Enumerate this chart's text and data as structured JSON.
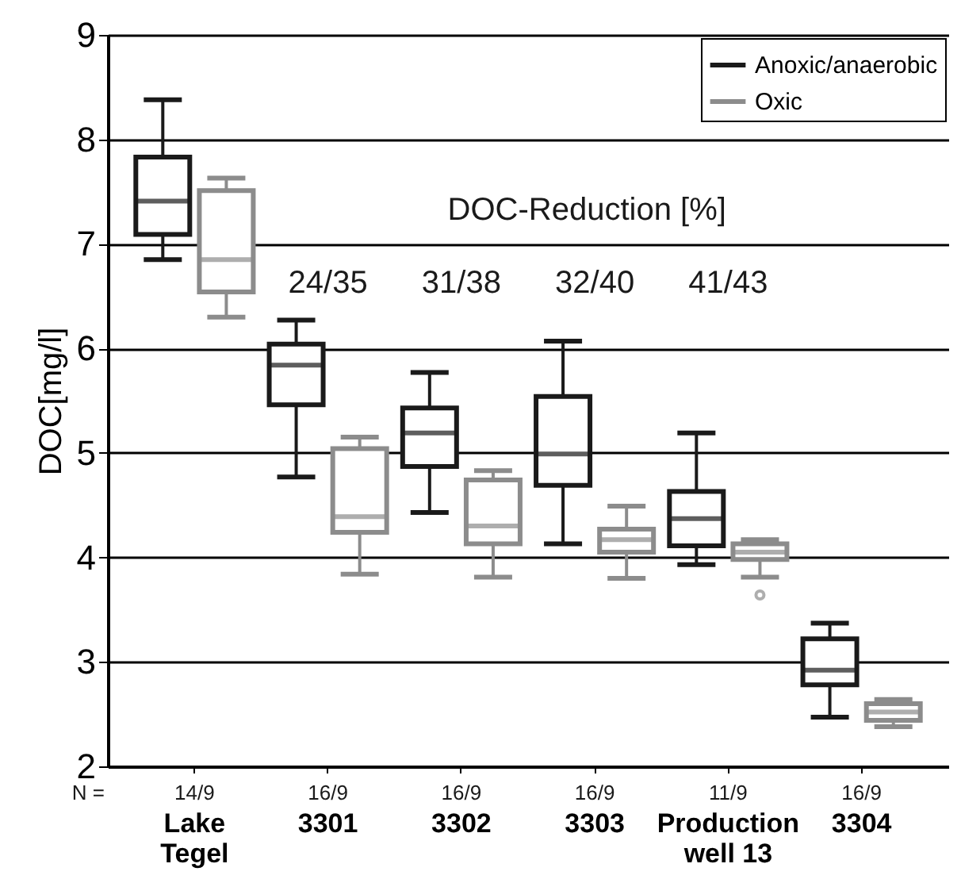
{
  "chart_data": {
    "type": "box",
    "ylabel": "DOC[mg/l]",
    "categories": [
      "Lake Tegel",
      "3301",
      "3302",
      "3303",
      "Production well 13",
      "3304"
    ],
    "ylim": [
      2,
      9
    ],
    "yticks": [
      2,
      3,
      4,
      5,
      6,
      7,
      8,
      9
    ],
    "grid": "y",
    "legend": "top right",
    "series": [
      {
        "name": "Anoxic/anaerobic",
        "color": "#1a1a1a",
        "boxes": [
          {
            "low": 6.85,
            "q1": 7.09,
            "median": 7.41,
            "q3": 7.83,
            "high": 8.38
          },
          {
            "low": 4.77,
            "q1": 5.46,
            "median": 5.84,
            "q3": 6.04,
            "high": 6.27
          },
          {
            "low": 4.43,
            "q1": 4.87,
            "median": 5.19,
            "q3": 5.43,
            "high": 5.77
          },
          {
            "low": 4.13,
            "q1": 4.69,
            "median": 4.99,
            "q3": 5.54,
            "high": 6.07
          },
          {
            "low": 3.93,
            "q1": 4.11,
            "median": 4.37,
            "q3": 4.63,
            "high": 5.19
          },
          {
            "low": 2.47,
            "q1": 2.78,
            "median": 2.92,
            "q3": 3.22,
            "high": 3.37
          }
        ]
      },
      {
        "name": "Oxic",
        "color": "#8c8c8c",
        "boxes": [
          {
            "low": 6.3,
            "q1": 6.54,
            "median": 6.85,
            "q3": 7.51,
            "high": 7.63
          },
          {
            "low": 3.84,
            "q1": 4.24,
            "median": 4.39,
            "q3": 5.04,
            "high": 5.15
          },
          {
            "low": 3.81,
            "q1": 4.13,
            "median": 4.3,
            "q3": 4.74,
            "high": 4.83
          },
          {
            "low": 3.8,
            "q1": 4.05,
            "median": 4.17,
            "q3": 4.27,
            "high": 4.49
          },
          {
            "low": 3.81,
            "q1": 3.98,
            "median": 4.05,
            "q3": 4.13,
            "high": 4.17,
            "outliers": [
              3.64
            ]
          },
          {
            "low": 2.38,
            "q1": 2.44,
            "median": 2.52,
            "q3": 2.6,
            "high": 2.64
          }
        ]
      }
    ],
    "annotations": [
      "DOC-Reduction [%]",
      "24/35",
      "31/38",
      "32/40",
      "41/43",
      "N =",
      "14/9",
      "16/9",
      "16/9",
      "16/9",
      "11/9",
      "16/9"
    ]
  }
}
